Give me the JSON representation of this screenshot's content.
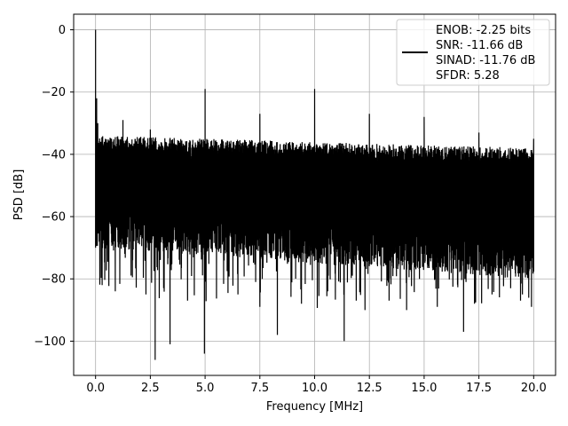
{
  "chart_data": {
    "type": "line",
    "xlabel": "Frequency [MHz]",
    "ylabel": "PSD [dB]",
    "xlim": [
      -1.0,
      21.0
    ],
    "ylim": [
      -111,
      5
    ],
    "xticks": [
      0.0,
      2.5,
      5.0,
      7.5,
      10.0,
      12.5,
      15.0,
      17.5,
      20.0
    ],
    "xtick_labels": [
      "0.0",
      "2.5",
      "5.0",
      "7.5",
      "10.0",
      "12.5",
      "15.0",
      "17.5",
      "20.0"
    ],
    "yticks": [
      0,
      -20,
      -40,
      -60,
      -80,
      -100
    ],
    "ytick_labels": [
      "0",
      "−20",
      "−40",
      "−60",
      "−80",
      "−100"
    ],
    "grid": true,
    "legend_position": "top-right",
    "line_color": "#000000",
    "series": [
      {
        "legend_lines": [
          "ENOB: -2.25 bits",
          "SNR: -11.66 dB",
          "SINAD: -11.76 dB",
          "SFDR: 5.28"
        ],
        "noise_floor": {
          "x_range": [
            0.0,
            20.0
          ],
          "upper_envelope_db": [
            -34,
            -38
          ],
          "lower_envelope_db": [
            -70,
            -80
          ],
          "lower_excursions_db": -90
        },
        "peaks": [
          {
            "x": 0.0,
            "y": 0
          },
          {
            "x": 0.05,
            "y": -22
          },
          {
            "x": 0.1,
            "y": -30
          },
          {
            "x": 1.25,
            "y": -29
          },
          {
            "x": 2.5,
            "y": -32
          },
          {
            "x": 5.0,
            "y": -19
          },
          {
            "x": 7.5,
            "y": -27
          },
          {
            "x": 10.0,
            "y": -19
          },
          {
            "x": 12.5,
            "y": -27
          },
          {
            "x": 15.0,
            "y": -28
          },
          {
            "x": 17.5,
            "y": -33
          },
          {
            "x": 20.0,
            "y": -35
          }
        ],
        "dips": [
          {
            "x": 2.72,
            "y": -106
          },
          {
            "x": 3.4,
            "y": -101
          },
          {
            "x": 4.97,
            "y": -104
          },
          {
            "x": 8.3,
            "y": -98
          },
          {
            "x": 11.35,
            "y": -100
          },
          {
            "x": 16.8,
            "y": -97
          },
          {
            "x": 0.3,
            "y": -82
          },
          {
            "x": 0.9,
            "y": -84
          },
          {
            "x": 2.3,
            "y": -85
          },
          {
            "x": 4.2,
            "y": -87
          },
          {
            "x": 6.5,
            "y": -85
          },
          {
            "x": 7.5,
            "y": -89
          },
          {
            "x": 9.4,
            "y": -88
          },
          {
            "x": 10.6,
            "y": -84
          },
          {
            "x": 11.9,
            "y": -87
          },
          {
            "x": 12.3,
            "y": -90
          },
          {
            "x": 13.4,
            "y": -87
          },
          {
            "x": 14.2,
            "y": -90
          },
          {
            "x": 15.6,
            "y": -89
          },
          {
            "x": 17.3,
            "y": -88
          },
          {
            "x": 18.1,
            "y": -85
          },
          {
            "x": 19.4,
            "y": -87
          },
          {
            "x": 19.9,
            "y": -89
          }
        ]
      }
    ]
  }
}
